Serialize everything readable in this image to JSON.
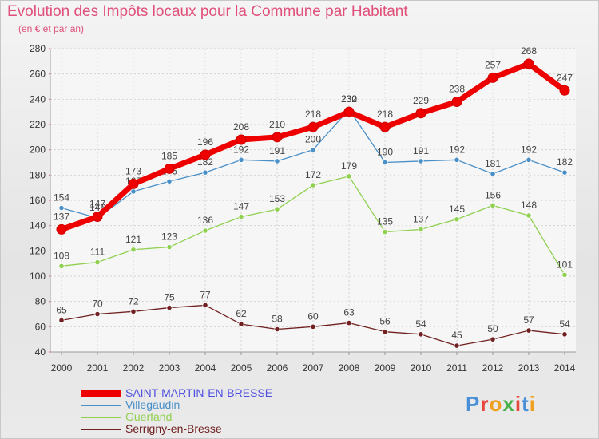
{
  "title": "Evolution des Impôts locaux pour la Commune par Habitant",
  "subtitle": "(en € et par an)",
  "logo": {
    "text": "Proxiti",
    "colors": [
      "#4a90d9",
      "#e8463c",
      "#f0a020",
      "#4ab04a",
      "#e8463c",
      "#4a90d9",
      "#f0a020"
    ]
  },
  "chart_data": {
    "type": "line",
    "x": [
      "2000",
      "2001",
      "2002",
      "2003",
      "2004",
      "2005",
      "2006",
      "2007",
      "2008",
      "2009",
      "2010",
      "2011",
      "2012",
      "2013",
      "2014"
    ],
    "ylim": [
      40,
      280
    ],
    "yticks": [
      40,
      60,
      80,
      100,
      120,
      140,
      160,
      180,
      200,
      220,
      240,
      260,
      280
    ],
    "grid": true,
    "legend_position": "bottom-left",
    "series": [
      {
        "name": "SAINT-MARTIN-EN-BRESSE",
        "color": "#ee0000",
        "legend_color": "#5050e0",
        "values": [
          137,
          147,
          173,
          185,
          196,
          208,
          210,
          218,
          230,
          218,
          229,
          238,
          257,
          268,
          247
        ]
      },
      {
        "name": "Villegaudin",
        "color": "#4a90c8",
        "legend_color": "#4a90c8",
        "values": [
          154,
          146,
          167,
          175,
          182,
          192,
          191,
          200,
          232,
          190,
          191,
          192,
          181,
          192,
          182
        ]
      },
      {
        "name": "Guerfand",
        "color": "#90d050",
        "legend_color": "#90d050",
        "values": [
          108,
          111,
          121,
          123,
          136,
          147,
          153,
          172,
          179,
          135,
          137,
          145,
          156,
          148,
          101
        ]
      },
      {
        "name": "Serrigny-en-Bresse",
        "color": "#702020",
        "legend_color": "#702020",
        "values": [
          65,
          70,
          72,
          75,
          77,
          62,
          58,
          60,
          63,
          56,
          54,
          45,
          50,
          57,
          54
        ]
      }
    ]
  }
}
